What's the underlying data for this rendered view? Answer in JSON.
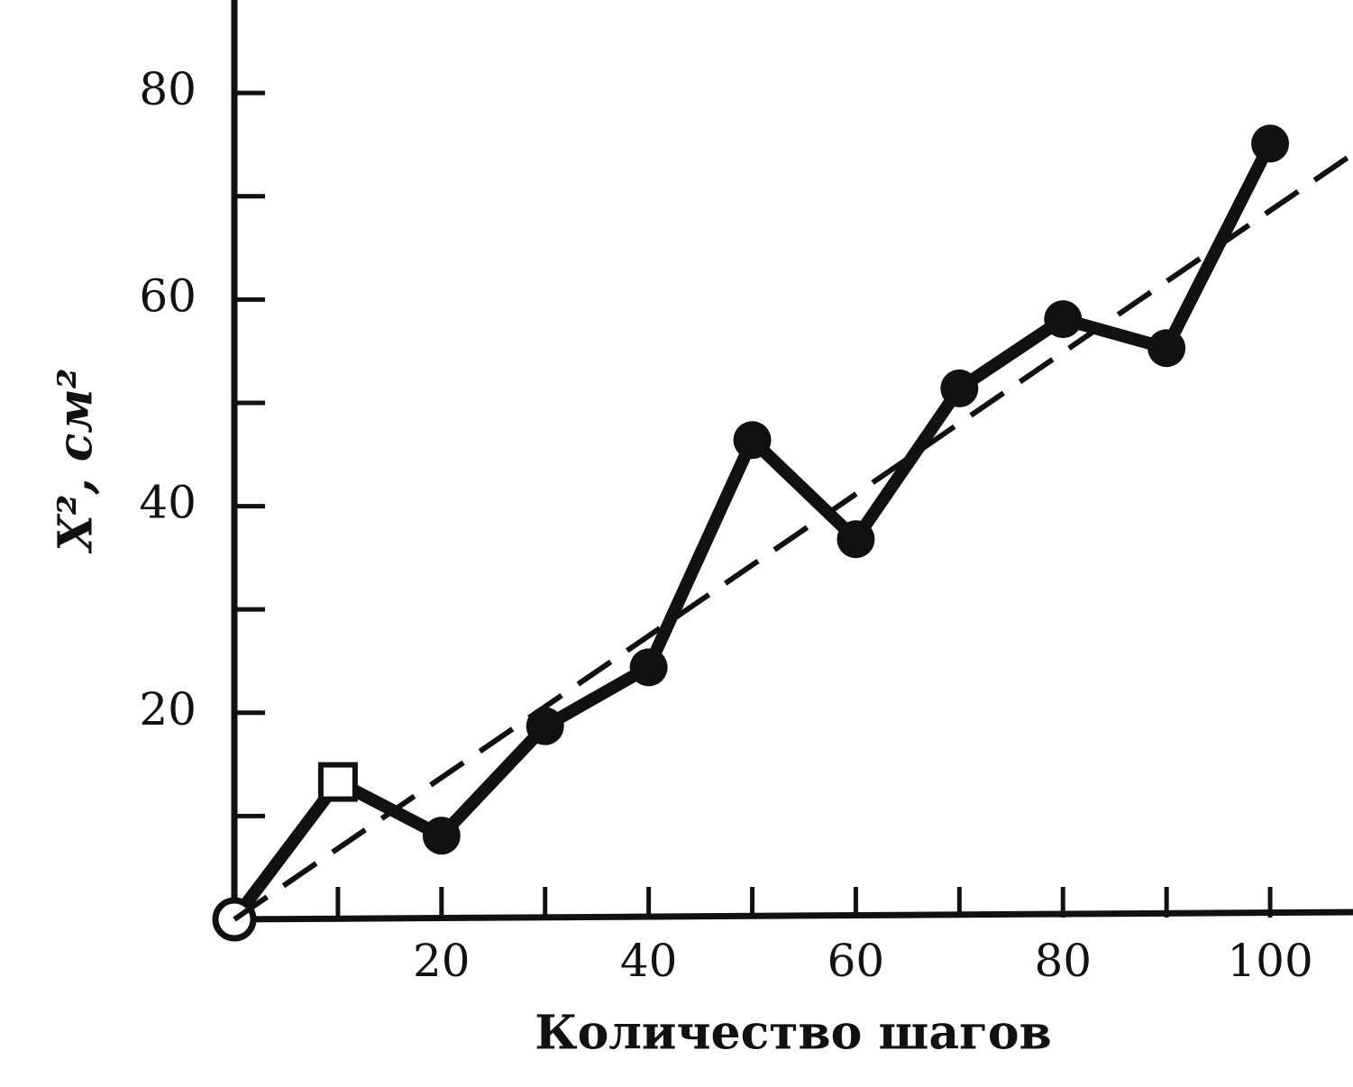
{
  "chart_data": {
    "type": "line",
    "xlabel": "Количество шагов",
    "ylabel": "X², см²",
    "xlim": [
      0,
      108
    ],
    "ylim": [
      0,
      89
    ],
    "xticks": [
      20,
      40,
      60,
      80,
      100
    ],
    "xminor_ticks": [
      10,
      30,
      50,
      70,
      90
    ],
    "yticks": [
      20,
      40,
      60,
      80
    ],
    "yminor_ticks": [
      10,
      30,
      50,
      70
    ],
    "grid": false,
    "series": [
      {
        "color": "#111111",
        "style": "solid",
        "x": [
          0,
          10,
          20,
          30,
          40,
          50,
          60,
          70,
          80,
          90,
          100
        ],
        "values": [
          0,
          13.3,
          8.1,
          18.7,
          24.4,
          46.4,
          36.8,
          51.4,
          58.1,
          55.3,
          75.1
        ],
        "markers": [
          "open-circle",
          "square",
          "circle",
          "circle",
          "circle",
          "circle",
          "circle",
          "circle",
          "circle",
          "circle",
          "circle"
        ]
      },
      {
        "color": "#111111",
        "style": "dashed",
        "x": [
          0,
          108
        ],
        "values": [
          0,
          74.1
        ]
      }
    ]
  }
}
